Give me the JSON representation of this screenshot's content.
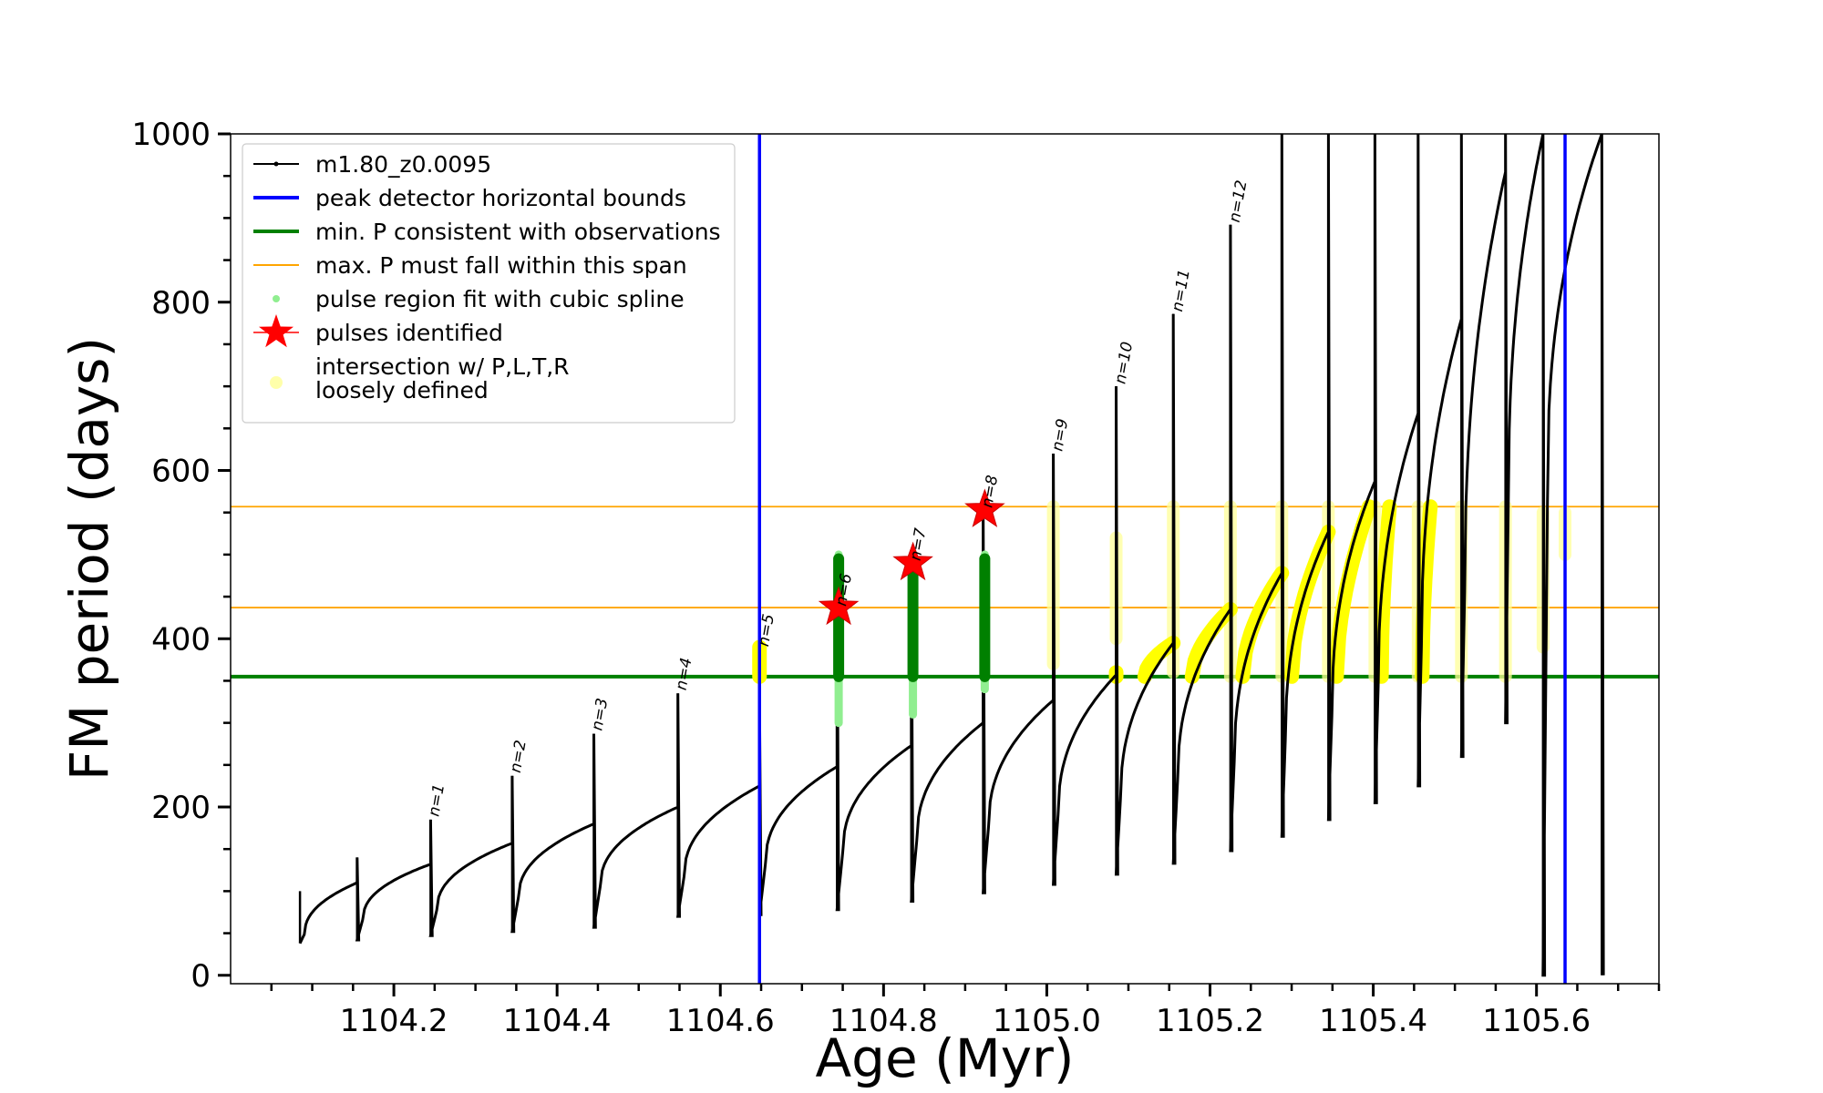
{
  "chart_data": {
    "type": "line",
    "title": "",
    "xlabel": "Age (Myr)",
    "ylabel": "FM period (days)",
    "xlim": [
      1104.0,
      1105.75
    ],
    "ylim": [
      -10,
      1000
    ],
    "xticks": [
      1104.2,
      1104.4,
      1104.6,
      1104.8,
      1105.0,
      1105.2,
      1105.4,
      1105.6
    ],
    "xtick_labels": [
      "1104.2",
      "1104.4",
      "1104.6",
      "1104.8",
      "1105.0",
      "1105.2",
      "1105.4",
      "1105.6"
    ],
    "yticks": [
      0,
      200,
      400,
      600,
      800,
      1000
    ],
    "ytick_labels": [
      "0",
      "200",
      "400",
      "600",
      "800",
      "1000"
    ],
    "grid": false,
    "legend_position": "top-left",
    "legend": [
      {
        "label": "m1.80_z0.0095",
        "kind": "line-marker",
        "color": "#000000"
      },
      {
        "label": "peak detector horizontal bounds",
        "kind": "line",
        "color": "#0000ff"
      },
      {
        "label": "min. P consistent with observations",
        "kind": "line",
        "color": "#008000"
      },
      {
        "label": "max. P must fall within this span",
        "kind": "thin-line",
        "color": "#ffa500"
      },
      {
        "label": "pulse region fit with cubic spline",
        "kind": "dot",
        "color": "#90ee90"
      },
      {
        "label": "pulses identified",
        "kind": "star",
        "color": "#ff0000"
      },
      {
        "label": "intersection w/ P,L,T,R",
        "label2": "loosely defined",
        "kind": "dot",
        "color": "#ffffaa"
      }
    ],
    "colors": {
      "track": "#000000",
      "bounds": "#0000ff",
      "min_p": "#008000",
      "max_p": "#ffa500",
      "spline": "#90ee90",
      "fit_region": "#008000",
      "star": "#ff0000",
      "intersection_strong": "#ffff00",
      "intersection_loose": "#ffff99"
    },
    "series": [
      {
        "name": "m1.80_z0.0095",
        "pulses": [
          {
            "t": 1104.085,
            "ymin": 38,
            "ymax": 100,
            "base": 82,
            "end": 110
          },
          {
            "t": 1104.155,
            "ymin": 42,
            "ymax": 140,
            "base": 112,
            "end": 132
          },
          {
            "t": 1104.245,
            "ymin": 47,
            "ymax": 185,
            "base": 132,
            "end": 157
          },
          {
            "t": 1104.345,
            "ymin": 52,
            "ymax": 237,
            "base": 157,
            "end": 180
          },
          {
            "t": 1104.445,
            "ymin": 57,
            "ymax": 287,
            "base": 180,
            "end": 200
          },
          {
            "t": 1104.548,
            "ymin": 70,
            "ymax": 335,
            "base": 200,
            "end": 225
          },
          {
            "t": 1104.648,
            "ymin": 72,
            "ymax": 335,
            "base": 225,
            "end": 248
          },
          {
            "t": 1104.743,
            "ymin": 78,
            "ymax": 480,
            "base": 248,
            "end": 273
          },
          {
            "t": 1104.834,
            "ymin": 88,
            "ymax": 480,
            "base": 273,
            "end": 300
          },
          {
            "t": 1104.922,
            "ymin": 98,
            "ymax": 560,
            "base": 300,
            "end": 327
          },
          {
            "t": 1105.008,
            "ymin": 108,
            "ymax": 620,
            "base": 327,
            "end": 357
          },
          {
            "t": 1105.085,
            "ymin": 120,
            "ymax": 700,
            "base": 357,
            "end": 395
          },
          {
            "t": 1105.155,
            "ymin": 133,
            "ymax": 786,
            "base": 395,
            "end": 435
          },
          {
            "t": 1105.225,
            "ymin": 148,
            "ymax": 892,
            "base": 435,
            "end": 478
          },
          {
            "t": 1105.288,
            "ymin": 165,
            "ymax": 1000,
            "base": 478,
            "end": 527
          },
          {
            "t": 1105.345,
            "ymin": 185,
            "ymax": 1000,
            "base": 527,
            "end": 587
          },
          {
            "t": 1105.402,
            "ymin": 205,
            "ymax": 1000,
            "base": 587,
            "end": 668
          },
          {
            "t": 1105.455,
            "ymin": 225,
            "ymax": 1000,
            "base": 668,
            "end": 780
          },
          {
            "t": 1105.508,
            "ymin": 260,
            "ymax": 1000,
            "base": 780,
            "end": 955
          },
          {
            "t": 1105.562,
            "ymin": 300,
            "ymax": 1000,
            "base": 955,
            "end": 1000
          },
          {
            "t": 1105.608,
            "ymin": 0,
            "ymax": 1000,
            "base": 1000,
            "end": 1000
          },
          {
            "t": 1105.68,
            "ymin": 0,
            "ymax": 1000,
            "base": 1000,
            "end": 1000
          }
        ],
        "start_age": 1104.08,
        "end_age": 1105.68
      }
    ],
    "vertical_bounds": [
      1104.648,
      1105.635
    ],
    "min_period": 355,
    "max_period_span": [
      437,
      557
    ],
    "pulse_labels": [
      {
        "text": "n=1",
        "t": 1104.248,
        "y": 188
      },
      {
        "text": "n=2",
        "t": 1104.348,
        "y": 240
      },
      {
        "text": "n=3",
        "t": 1104.448,
        "y": 290
      },
      {
        "text": "n=4",
        "t": 1104.551,
        "y": 338
      },
      {
        "text": "n=5",
        "t": 1104.652,
        "y": 390
      },
      {
        "text": "n=6",
        "t": 1104.747,
        "y": 438
      },
      {
        "text": "n=7",
        "t": 1104.838,
        "y": 492
      },
      {
        "text": "n=8",
        "t": 1104.926,
        "y": 555
      },
      {
        "text": "n=9",
        "t": 1105.012,
        "y": 622
      },
      {
        "text": "n=10",
        "t": 1105.089,
        "y": 702
      },
      {
        "text": "n=11",
        "t": 1105.159,
        "y": 788
      },
      {
        "text": "n=12",
        "t": 1105.229,
        "y": 894
      }
    ],
    "pulses_identified": [
      {
        "t": 1104.745,
        "y": 437
      },
      {
        "t": 1104.836,
        "y": 490
      },
      {
        "t": 1104.924,
        "y": 553
      }
    ],
    "spline_fit_regions": [
      {
        "t": 1104.745,
        "ymin": 300,
        "ymax": 500
      },
      {
        "t": 1104.836,
        "ymin": 310,
        "ymax": 480
      },
      {
        "t": 1104.924,
        "ymin": 340,
        "ymax": 500
      }
    ],
    "fit_regions": [
      {
        "t": 1104.745,
        "ymin": 355,
        "ymax": 495
      },
      {
        "t": 1104.836,
        "ymin": 355,
        "ymax": 475
      },
      {
        "t": 1104.924,
        "ymin": 355,
        "ymax": 495
      }
    ],
    "intersection_strong": [
      {
        "t": 1104.648,
        "ymin": 355,
        "ymax": 390
      },
      {
        "t": 1105.085,
        "ymin": 355,
        "ymax": 360
      },
      {
        "t1": 1105.12,
        "t2": 1105.155,
        "ymin": 355,
        "ymax": 395
      },
      {
        "t1": 1105.178,
        "t2": 1105.225,
        "ymin": 355,
        "ymax": 435
      },
      {
        "t1": 1105.24,
        "t2": 1105.288,
        "ymin": 355,
        "ymax": 478
      },
      {
        "t1": 1105.3,
        "t2": 1105.345,
        "ymin": 355,
        "ymax": 527
      },
      {
        "t1": 1105.355,
        "t2": 1105.395,
        "ymin": 355,
        "ymax": 557
      },
      {
        "t1": 1105.41,
        "t2": 1105.42,
        "ymin": 355,
        "ymax": 557
      },
      {
        "t1": 1105.46,
        "t2": 1105.47,
        "ymin": 355,
        "ymax": 557
      }
    ],
    "intersection_loose": [
      {
        "t": 1105.008,
        "ymin": 370,
        "ymax": 557
      },
      {
        "t": 1105.085,
        "ymin": 400,
        "ymax": 520
      },
      {
        "t": 1105.155,
        "ymin": 360,
        "ymax": 557
      },
      {
        "t": 1105.225,
        "ymin": 355,
        "ymax": 557
      },
      {
        "t": 1105.288,
        "ymin": 355,
        "ymax": 557
      },
      {
        "t": 1105.345,
        "ymin": 355,
        "ymax": 557
      },
      {
        "t": 1105.402,
        "ymin": 355,
        "ymax": 557
      },
      {
        "t": 1105.455,
        "ymin": 355,
        "ymax": 557
      },
      {
        "t": 1105.508,
        "ymin": 355,
        "ymax": 557
      },
      {
        "t": 1105.562,
        "ymin": 355,
        "ymax": 557
      },
      {
        "t": 1105.608,
        "ymin": 390,
        "ymax": 550
      },
      {
        "t": 1105.635,
        "ymin": 500,
        "ymax": 550
      }
    ]
  }
}
